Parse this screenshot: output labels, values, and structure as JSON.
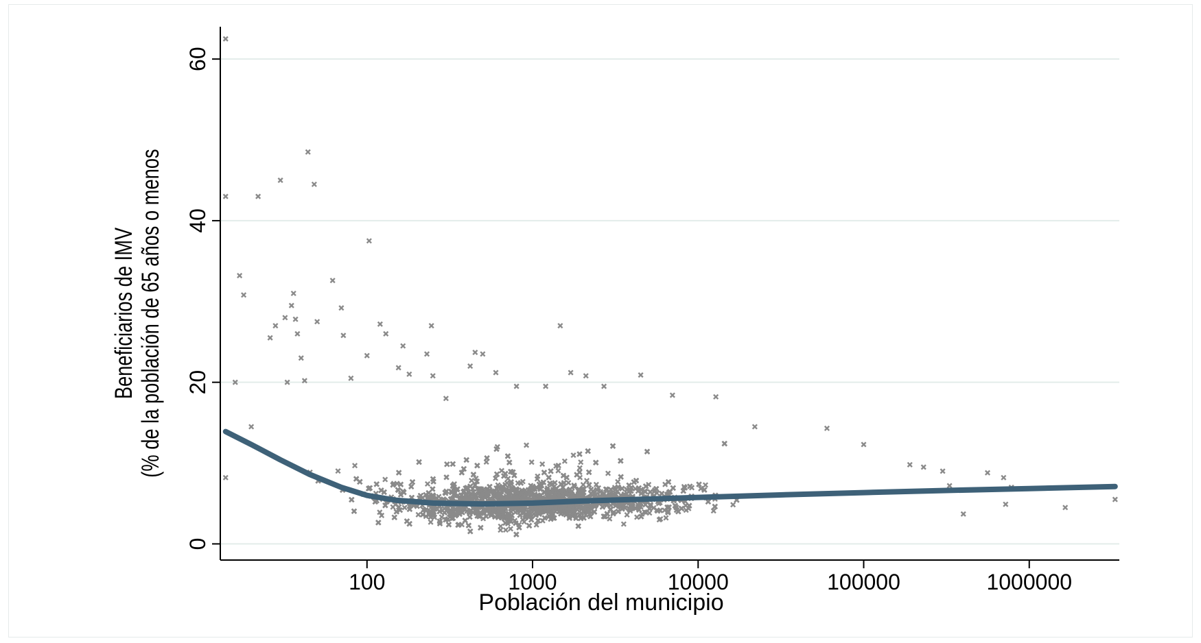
{
  "chart_data": {
    "type": "scatter",
    "x_scale": "log10",
    "xlim": [
      13,
      3500000
    ],
    "ylim": [
      -2,
      64
    ],
    "x_ticks": [
      {
        "value": 100,
        "label": "100"
      },
      {
        "value": 1000,
        "label": "1000"
      },
      {
        "value": 10000,
        "label": "10000"
      },
      {
        "value": 100000,
        "label": "100000"
      },
      {
        "value": 1000000,
        "label": "1000000"
      }
    ],
    "y_ticks": [
      {
        "value": 0,
        "label": "0"
      },
      {
        "value": 20,
        "label": "20"
      },
      {
        "value": 40,
        "label": "40"
      },
      {
        "value": 60,
        "label": "60"
      }
    ],
    "xlabel": "Población del municipio",
    "ylabel_line1": "Beneficiarios de IMV",
    "ylabel_line2": "(% de la población de 65 años o menos",
    "grid": "horizontal",
    "colors": {
      "points": "#8a8a8a",
      "fit_line": "#3e6178",
      "grid": "#e3ecea",
      "axis": "#000000"
    },
    "marker": "x",
    "series": [
      {
        "kind": "points",
        "points": [
          [
            14,
            62.5
          ],
          [
            14,
            43
          ],
          [
            14,
            8.2
          ],
          [
            16,
            20
          ],
          [
            17,
            33.2
          ],
          [
            18,
            30.8
          ],
          [
            20,
            14.5
          ],
          [
            22,
            43
          ],
          [
            30,
            45
          ],
          [
            28,
            27
          ],
          [
            26,
            25.5
          ],
          [
            32,
            28
          ],
          [
            33,
            20
          ],
          [
            35,
            29.5
          ],
          [
            36,
            31
          ],
          [
            37,
            27.8
          ],
          [
            38,
            26
          ],
          [
            40,
            23
          ],
          [
            42,
            20.2
          ],
          [
            44,
            48.5
          ],
          [
            48,
            44.5
          ],
          [
            50,
            27.5
          ],
          [
            62,
            32.6
          ],
          [
            70,
            29.2
          ],
          [
            72,
            25.8
          ],
          [
            80,
            20.5
          ],
          [
            100,
            23.3
          ],
          [
            103,
            37.5
          ],
          [
            120,
            27.2
          ],
          [
            130,
            26
          ],
          [
            155,
            21.8
          ],
          [
            165,
            24.5
          ],
          [
            180,
            21
          ],
          [
            230,
            23.5
          ],
          [
            245,
            27
          ],
          [
            250,
            20.8
          ],
          [
            300,
            18
          ],
          [
            420,
            22
          ],
          [
            450,
            23.7
          ],
          [
            500,
            23.5
          ],
          [
            600,
            21.2
          ],
          [
            800,
            19.5
          ],
          [
            1200,
            19.5
          ],
          [
            1470,
            27
          ],
          [
            1700,
            21.2
          ],
          [
            2100,
            20.8
          ],
          [
            2700,
            19.5
          ],
          [
            4500,
            20.9
          ],
          [
            7000,
            18.4
          ],
          [
            12800,
            18.2
          ],
          [
            22000,
            14.5
          ],
          [
            60000,
            14.3
          ],
          [
            100000,
            12.3
          ],
          [
            190000,
            9.8
          ],
          [
            230000,
            9.5
          ],
          [
            300000,
            9
          ],
          [
            330000,
            7.2
          ],
          [
            400000,
            3.7
          ],
          [
            560000,
            8.8
          ],
          [
            700000,
            8.2
          ],
          [
            720000,
            4.9
          ],
          [
            780000,
            7
          ],
          [
            1650000,
            4.5
          ],
          [
            3300000,
            5.5
          ]
        ]
      },
      {
        "kind": "fit_line",
        "points": [
          [
            14,
            13.9
          ],
          [
            20,
            12.3
          ],
          [
            30,
            10.4
          ],
          [
            45,
            8.6
          ],
          [
            70,
            7
          ],
          [
            100,
            6
          ],
          [
            150,
            5.4
          ],
          [
            250,
            5.05
          ],
          [
            500,
            4.95
          ],
          [
            1000,
            5.05
          ],
          [
            2000,
            5.3
          ],
          [
            5000,
            5.55
          ],
          [
            10000,
            5.75
          ],
          [
            30000,
            6.05
          ],
          [
            100000,
            6.35
          ],
          [
            300000,
            6.6
          ],
          [
            1000000,
            6.85
          ],
          [
            3300000,
            7.1
          ]
        ]
      }
    ]
  }
}
